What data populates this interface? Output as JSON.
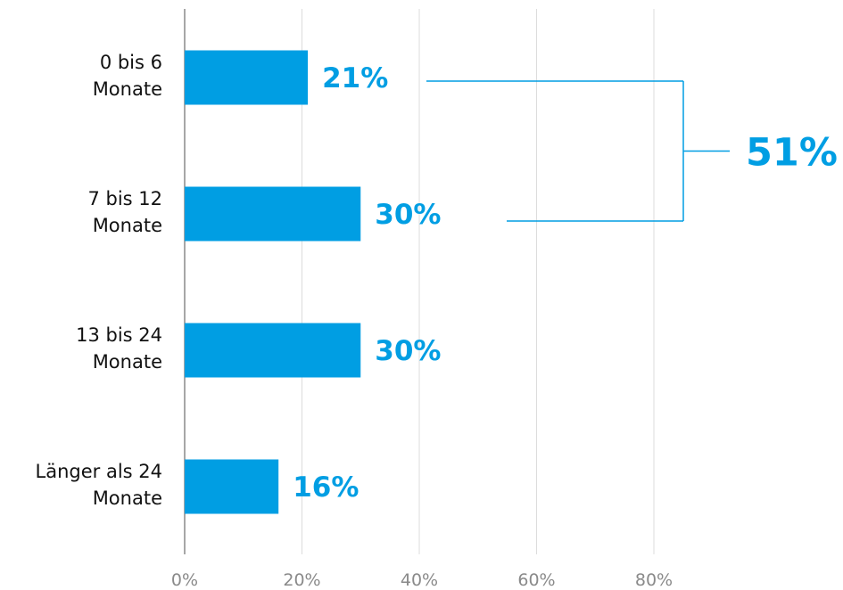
{
  "chart_data": {
    "type": "bar",
    "orientation": "horizontal",
    "categories": [
      [
        "0 bis 6",
        "Monate"
      ],
      [
        "7 bis 12",
        "Monate"
      ],
      [
        "13 bis 24",
        "Monate"
      ],
      [
        "Länger als 24",
        "Monate"
      ]
    ],
    "values": [
      21,
      30,
      30,
      16
    ],
    "value_labels": [
      "21%",
      "30%",
      "30%",
      "16%"
    ],
    "xlim": [
      0,
      100
    ],
    "xticks": [
      0,
      20,
      40,
      60,
      80
    ],
    "xtick_labels": [
      "0%",
      "20%",
      "40%",
      "60%",
      "80%"
    ],
    "grid": "vertical",
    "bracket": {
      "categories": [
        0,
        1
      ],
      "label": "51%"
    },
    "colors": {
      "bar": "#009ee3",
      "label": "#009ee3",
      "grid": "#dcdcdc",
      "axis": "#8a8a8a",
      "text": "#111111",
      "ticks": "#8a8a8a"
    }
  }
}
